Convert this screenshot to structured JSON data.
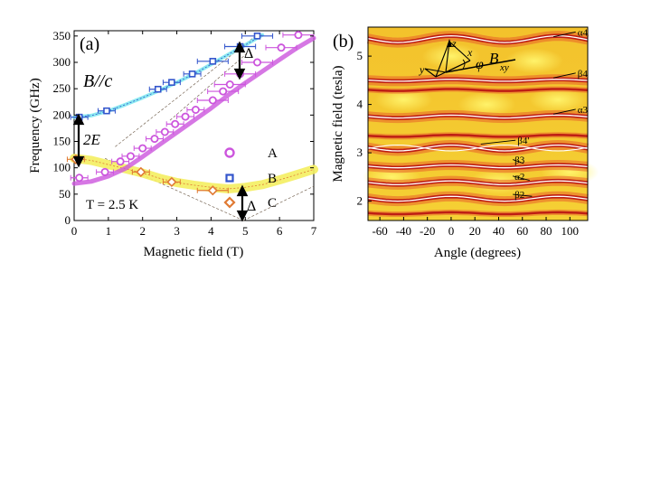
{
  "chart_data": [
    {
      "panel": "(a)",
      "type": "scatter",
      "xlabel": "Magnetic field (T)",
      "ylabel": "Frequency (GHz)",
      "xlim": [
        0,
        7
      ],
      "ylim": [
        0,
        360
      ],
      "xticks": [
        "0",
        "1",
        "2",
        "3",
        "4",
        "5",
        "6",
        "7"
      ],
      "yticks": [
        "0",
        "50",
        "100",
        "150",
        "200",
        "250",
        "300",
        "350"
      ],
      "annotations": {
        "orientation": "B//c",
        "temperature": "T = 2.5 K",
        "gap_label": "2E",
        "delta_label": "Δ"
      },
      "legend": {
        "placement": "center-right",
        "entries": [
          "A",
          "B",
          "C"
        ]
      },
      "series": [
        {
          "name": "A",
          "color": "#cc55dd",
          "marker": "circle",
          "points": [
            [
              0.15,
              81
            ],
            [
              0.9,
              92
            ],
            [
              1.35,
              112
            ],
            [
              1.65,
              122
            ],
            [
              2.0,
              137
            ],
            [
              2.35,
              155
            ],
            [
              2.65,
              168
            ],
            [
              2.95,
              183
            ],
            [
              3.25,
              197
            ],
            [
              3.55,
              210
            ],
            [
              4.05,
              228
            ],
            [
              4.35,
              245
            ],
            [
              4.55,
              258
            ],
            [
              4.85,
              278
            ],
            [
              5.35,
              300
            ],
            [
              6.05,
              328
            ],
            [
              6.55,
              352
            ]
          ]
        },
        {
          "name": "B",
          "color": "#3355cc",
          "marker": "square",
          "points": [
            [
              0.15,
              196
            ],
            [
              0.95,
              208
            ],
            [
              2.45,
              249
            ],
            [
              2.85,
              262
            ],
            [
              3.45,
              278
            ],
            [
              4.05,
              302
            ],
            [
              4.85,
              330
            ],
            [
              5.35,
              350
            ]
          ]
        },
        {
          "name": "C",
          "color": "#e07a33",
          "marker": "diamond",
          "points": [
            [
              0.05,
              116
            ],
            [
              1.95,
              92
            ],
            [
              2.85,
              73
            ],
            [
              4.05,
              57
            ]
          ]
        }
      ],
      "fits": {
        "A": [
          [
            0,
            70
          ],
          [
            0.5,
            74
          ],
          [
            1,
            84
          ],
          [
            1.5,
            99
          ],
          [
            2,
            121
          ],
          [
            2.5,
            144
          ],
          [
            3,
            167
          ],
          [
            3.5,
            190
          ],
          [
            4,
            213
          ],
          [
            4.5,
            238
          ],
          [
            5,
            261
          ],
          [
            5.5,
            283
          ],
          [
            6,
            305
          ],
          [
            6.5,
            327
          ],
          [
            7,
            346
          ]
        ],
        "B": [
          [
            0,
            196
          ],
          [
            0.5,
            199
          ],
          [
            1,
            208
          ],
          [
            1.5,
            220
          ],
          [
            2,
            233
          ],
          [
            2.5,
            247
          ],
          [
            3,
            262
          ],
          [
            3.5,
            278
          ],
          [
            4,
            296
          ],
          [
            4.5,
            315
          ],
          [
            5,
            333
          ],
          [
            5.5,
            352
          ]
        ],
        "C": [
          [
            0,
            118
          ],
          [
            0.5,
            114
          ],
          [
            1,
            106
          ],
          [
            1.5,
            98
          ],
          [
            2,
            90
          ],
          [
            2.5,
            80
          ],
          [
            3,
            72
          ],
          [
            3.5,
            67
          ],
          [
            4,
            63
          ],
          [
            4.5,
            60
          ],
          [
            5,
            63
          ],
          [
            5.5,
            68
          ],
          [
            6,
            77
          ],
          [
            6.5,
            87
          ],
          [
            7,
            97
          ]
        ]
      }
    },
    {
      "panel": "(b)",
      "type": "heatmap",
      "xlabel": "Angle (degrees)",
      "ylabel": "Magnetic field (tesla)",
      "xlim": [
        -70,
        115
      ],
      "ylim": [
        1.6,
        5.6
      ],
      "xticks": [
        "-60",
        "-40",
        "-20",
        "0",
        "20",
        "40",
        "60",
        "80",
        "100"
      ],
      "yticks": [
        "2",
        "3",
        "4",
        "5"
      ],
      "axis_letters": {
        "z": "z",
        "x": "x",
        "y": "y",
        "phi": "φ",
        "field": "B",
        "field_sub": "xy"
      },
      "branches": [
        {
          "label": "α4",
          "field": 5.35
        },
        {
          "label": "β4",
          "field": 4.5
        },
        {
          "label": "α3",
          "field": 3.75
        },
        {
          "label": "β4'",
          "field": 3.1
        },
        {
          "label": "β3",
          "field": 2.72
        },
        {
          "label": "α2",
          "field": 2.38
        },
        {
          "label": "β2",
          "field": 2.05
        }
      ]
    }
  ]
}
